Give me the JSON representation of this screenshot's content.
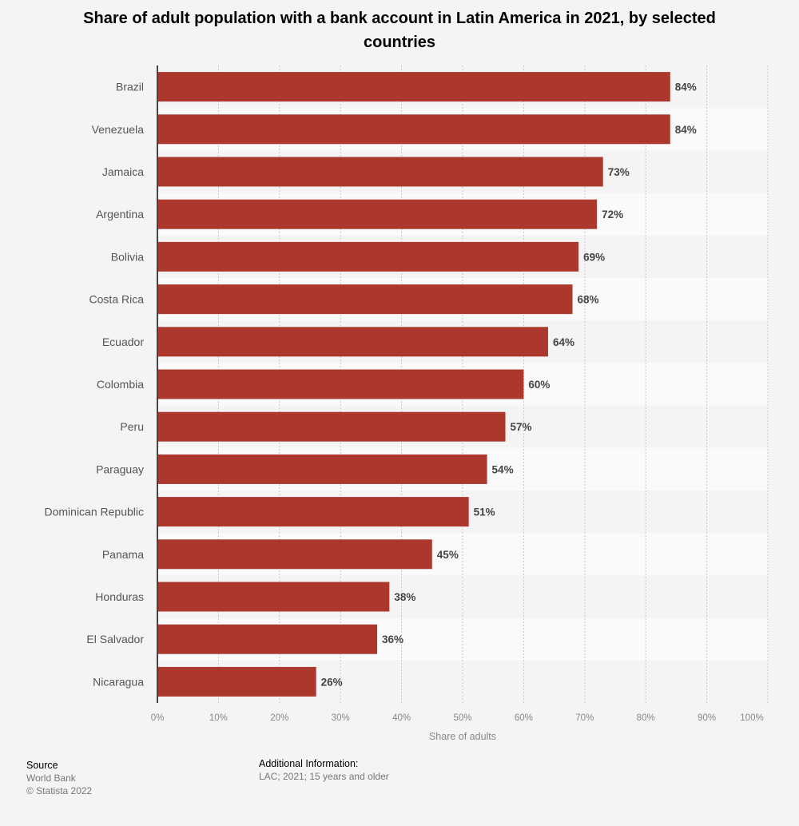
{
  "chart_data": {
    "type": "bar",
    "orientation": "horizontal",
    "title": "Share of adult population with a bank account in Latin America in 2021, by selected countries",
    "xlabel": "Share of adults",
    "ylabel": "",
    "categories": [
      "Brazil",
      "Venezuela",
      "Jamaica",
      "Argentina",
      "Bolivia",
      "Costa Rica",
      "Ecuador",
      "Colombia",
      "Peru",
      "Paraguay",
      "Dominican Republic",
      "Panama",
      "Honduras",
      "El Salvador",
      "Nicaragua"
    ],
    "values": [
      84,
      84,
      73,
      72,
      69,
      68,
      64,
      60,
      57,
      54,
      51,
      45,
      38,
      36,
      26
    ],
    "data_labels": [
      "84%",
      "84%",
      "73%",
      "72%",
      "69%",
      "68%",
      "64%",
      "60%",
      "57%",
      "54%",
      "51%",
      "45%",
      "38%",
      "36%",
      "26%"
    ],
    "xlim": [
      0,
      100
    ],
    "ticks": [
      "0%",
      "10%",
      "20%",
      "30%",
      "40%",
      "50%",
      "60%",
      "70%",
      "80%",
      "90%",
      "100%"
    ],
    "grid": true,
    "legend": "none",
    "colors": {
      "bar": "#ab372d",
      "background": "#f4f4f4",
      "band": "#fafafa"
    }
  },
  "footer": {
    "source_heading": "Source",
    "source": "World Bank",
    "copyright": "© Statista 2022",
    "info_heading": "Additional Information:",
    "info": "LAC; 2021; 15 years and older"
  }
}
